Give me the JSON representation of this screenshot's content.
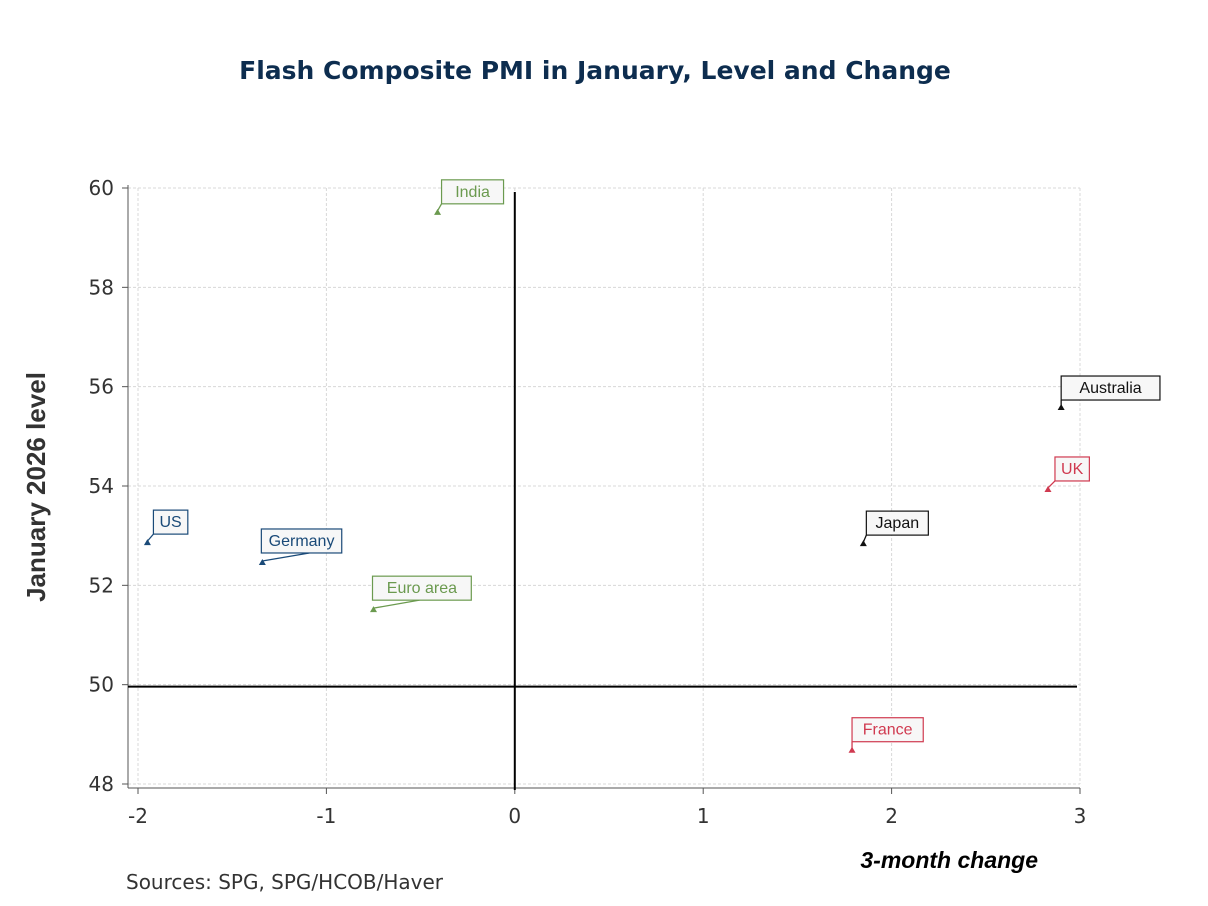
{
  "chart_data": {
    "type": "scatter",
    "title": "Flash Composite PMI in January, Level and Change",
    "xlabel": "3-month change",
    "ylabel": "January 2026 level",
    "xlim": [
      -2,
      3
    ],
    "ylim": [
      48,
      60
    ],
    "xticks": [
      -2,
      -1,
      0,
      1,
      2,
      3
    ],
    "yticks": [
      48,
      50,
      52,
      54,
      56,
      58,
      60
    ],
    "grid": true,
    "reference_lines": {
      "x": 0,
      "y": 50
    },
    "points": [
      {
        "label": "India",
        "x": -0.41,
        "y": 59.5,
        "color": "#6b9a4f"
      },
      {
        "label": "US",
        "x": -1.95,
        "y": 52.85,
        "color": "#1a4a78"
      },
      {
        "label": "Germany",
        "x": -1.34,
        "y": 52.45,
        "color": "#1a4a78"
      },
      {
        "label": "Euro area",
        "x": -0.75,
        "y": 51.5,
        "color": "#6b9a4f"
      },
      {
        "label": "Japan",
        "x": 1.85,
        "y": 52.83,
        "color": "#111111"
      },
      {
        "label": "Australia",
        "x": 2.9,
        "y": 55.57,
        "color": "#111111"
      },
      {
        "label": "UK",
        "x": 2.83,
        "y": 53.92,
        "color": "#d03a50"
      },
      {
        "label": "France",
        "x": 1.79,
        "y": 48.67,
        "color": "#d03a50"
      }
    ]
  },
  "source": "Sources:  SPG, SPG/HCOB/Haver"
}
